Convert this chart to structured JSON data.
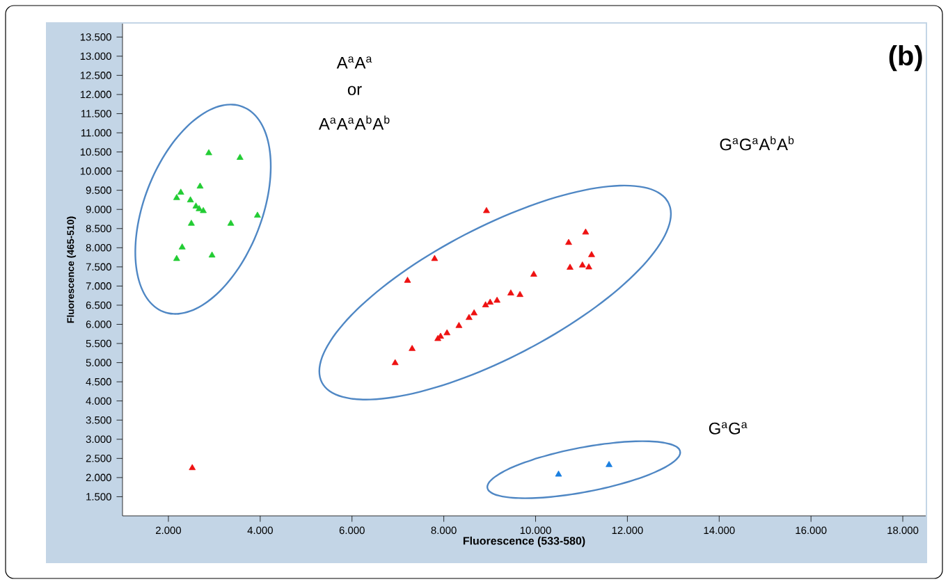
{
  "chart_data": {
    "type": "scatter",
    "xlabel": "Fluorescence (533-580)",
    "ylabel": "Fluorescence (465-510)",
    "marker": "triangle",
    "grid": false,
    "xlim": [
      1000,
      18500
    ],
    "ylim": [
      1000,
      13850
    ],
    "xticks": [
      {
        "value": 2000,
        "label": "2.000"
      },
      {
        "value": 4000,
        "label": "4.000"
      },
      {
        "value": 6000,
        "label": "6.000"
      },
      {
        "value": 8000,
        "label": "8.000"
      },
      {
        "value": 10000,
        "label": "10.000"
      },
      {
        "value": 12000,
        "label": "12.000"
      },
      {
        "value": 14000,
        "label": "14.000"
      },
      {
        "value": 16000,
        "label": "16.000"
      },
      {
        "value": 18000,
        "label": "18.000"
      }
    ],
    "yticks": [
      {
        "value": 1500,
        "label": "1.500"
      },
      {
        "value": 2000,
        "label": "2.000"
      },
      {
        "value": 2500,
        "label": "2.500"
      },
      {
        "value": 3000,
        "label": "3.000"
      },
      {
        "value": 3500,
        "label": "3.500"
      },
      {
        "value": 4000,
        "label": "4.000"
      },
      {
        "value": 4500,
        "label": "4.500"
      },
      {
        "value": 5000,
        "label": "5.000"
      },
      {
        "value": 5500,
        "label": "5.500"
      },
      {
        "value": 6000,
        "label": "6.000"
      },
      {
        "value": 6500,
        "label": "6.500"
      },
      {
        "value": 7000,
        "label": "7.000"
      },
      {
        "value": 7500,
        "label": "7.500"
      },
      {
        "value": 8000,
        "label": "8.000"
      },
      {
        "value": 8500,
        "label": "8.500"
      },
      {
        "value": 9000,
        "label": "9.000"
      },
      {
        "value": 9500,
        "label": "9.500"
      },
      {
        "value": 10000,
        "label": "10.000"
      },
      {
        "value": 10500,
        "label": "10.500"
      },
      {
        "value": 11000,
        "label": "11.000"
      },
      {
        "value": 11500,
        "label": "11.500"
      },
      {
        "value": 12000,
        "label": "12.000"
      },
      {
        "value": 12500,
        "label": "12.500"
      },
      {
        "value": 13000,
        "label": "13.000"
      },
      {
        "value": 13500,
        "label": "13.500"
      }
    ],
    "series": [
      {
        "color": "#22cc33",
        "x": [
          2880,
          3560,
          2690,
          2270,
          2180,
          2480,
          2600,
          2760,
          2670,
          3940,
          2500,
          3360,
          2300,
          2180,
          2950
        ],
        "values": [
          10470,
          10350,
          9600,
          9440,
          9300,
          9240,
          9080,
          8960,
          9010,
          8840,
          8630,
          8630,
          8010,
          7710,
          7800
        ]
      },
      {
        "color": "#ee1111",
        "x": [
          8930,
          11090,
          10720,
          11220,
          10750,
          11020,
          11160,
          7800,
          7210,
          9960,
          9460,
          9660,
          9160,
          9010,
          8910,
          8660,
          8550,
          8330,
          8070,
          7930,
          7870,
          7310,
          6940
        ],
        "values": [
          8960,
          8400,
          8130,
          7810,
          7480,
          7540,
          7490,
          7710,
          7140,
          7300,
          6810,
          6770,
          6620,
          6570,
          6500,
          6290,
          6170,
          5960,
          5770,
          5680,
          5620,
          5360,
          4990
        ]
      },
      {
        "color": "#ee1111",
        "x": [
          2520
        ],
        "values": [
          2250
        ]
      },
      {
        "color": "#1a7fe0",
        "x": [
          10500,
          11600
        ],
        "values": [
          2080,
          2330
        ]
      }
    ],
    "annotations": [
      "A$^{a}$A$^{a}$",
      "or",
      "A$^{a}$A$^{a}$A$^{b}$A$^{b}$",
      "G$^{a}$G$^{a}$A$^{b}$A$^{b}$",
      "G$^{a}$G$^{a}$",
      "(b)"
    ]
  }
}
